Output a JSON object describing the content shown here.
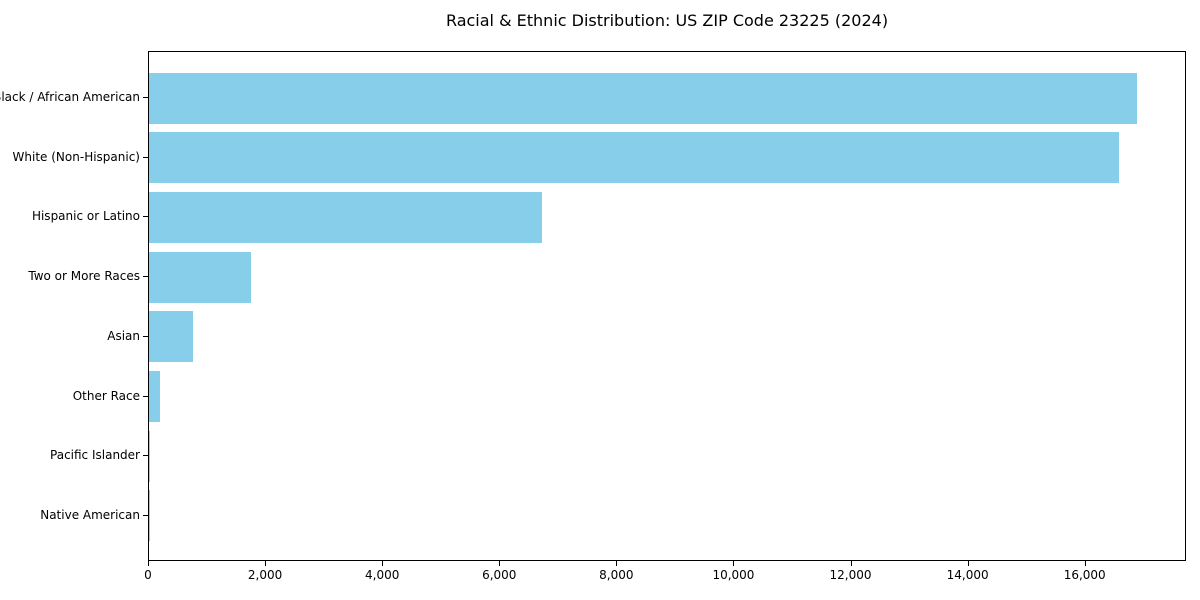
{
  "chart_data": {
    "type": "bar",
    "orientation": "horizontal",
    "title": "Racial & Ethnic Distribution: US ZIP Code 23225 (2024)",
    "categories": [
      "Black / African American",
      "White (Non-Hispanic)",
      "Hispanic or Latino",
      "Two or More Races",
      "Asian",
      "Other Race",
      "Pacific Islander",
      "Native American"
    ],
    "values": [
      16880,
      16570,
      6720,
      1740,
      750,
      180,
      20,
      10
    ],
    "bar_color": "#87CEEB",
    "xlabel": "",
    "ylabel": "",
    "xlim": [
      0,
      17730
    ],
    "x_ticks": [
      0,
      2000,
      4000,
      6000,
      8000,
      10000,
      12000,
      14000,
      16000
    ],
    "x_tick_labels": [
      "0",
      "2,000",
      "4,000",
      "6,000",
      "8,000",
      "10,000",
      "12,000",
      "14,000",
      "16,000"
    ],
    "grid": false,
    "legend": null
  }
}
